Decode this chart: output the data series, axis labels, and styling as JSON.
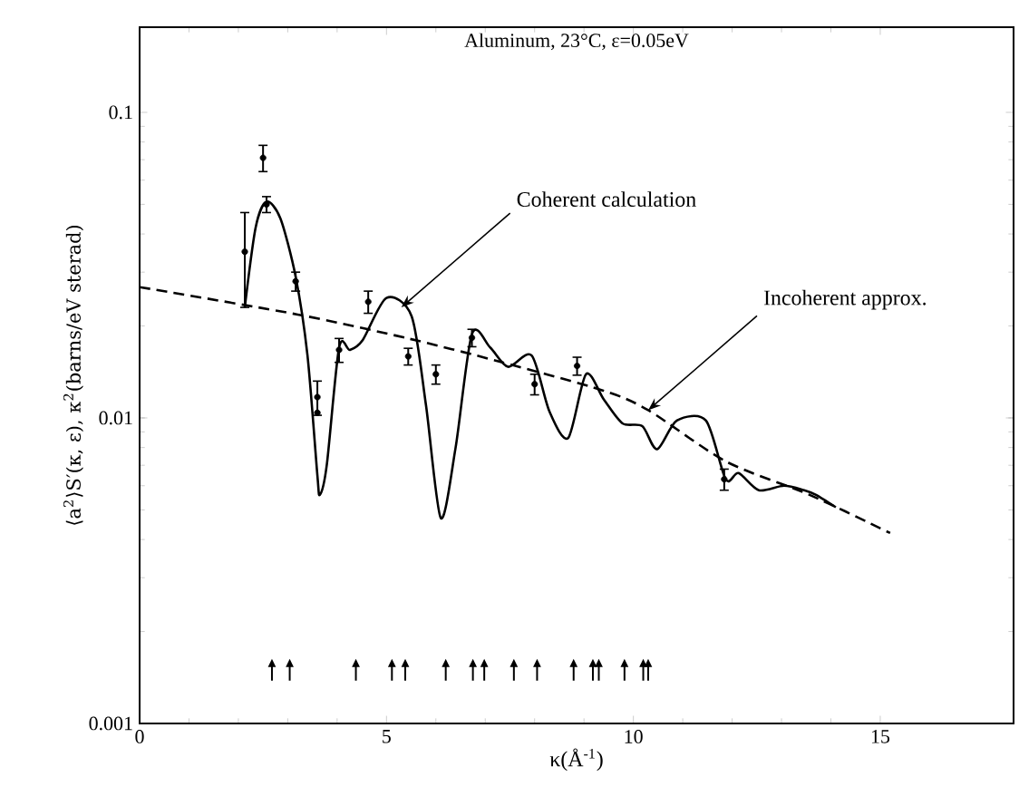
{
  "chart_data": {
    "type": "line",
    "title": "Aluminum, 23°C,  ε=0.05eV",
    "xlabel": "κ(Å$^{-1}$)",
    "ylabel": "⟨a$^{2}$⟩S′(κ, ε), κ$^{2}$(barns/eV sterad)",
    "log": "y",
    "xlim": [
      0,
      17.7
    ],
    "ylim": [
      0.001,
      0.19
    ],
    "xticks": [
      0,
      5,
      10,
      15
    ],
    "yticks": [
      0.001,
      0.01,
      0.1
    ],
    "grid": false,
    "annotations": [
      {
        "text": "Coherent calculation",
        "x": 5.3,
        "y": 0.023
      },
      {
        "text": "Incoherent approx.",
        "x": 10.3,
        "y": 0.0106
      }
    ],
    "series": [
      {
        "color": "#000000",
        "line_style": "solid",
        "marker": "none",
        "x": [
          2.13,
          2.35,
          2.57,
          2.85,
          3.16,
          3.4,
          3.6,
          3.65,
          3.79,
          4.04,
          4.26,
          4.52,
          5.0,
          5.51,
          5.8,
          6.1,
          6.4,
          6.73,
          7.1,
          7.46,
          7.94,
          8.3,
          8.68,
          9.04,
          9.4,
          9.78,
          10.18,
          10.48,
          10.88,
          11.47,
          11.87,
          12.13,
          12.54,
          13.05,
          13.46,
          13.7,
          14.1
        ],
        "values": [
          0.023,
          0.042,
          0.051,
          0.045,
          0.029,
          0.016,
          0.0065,
          0.0056,
          0.007,
          0.017,
          0.0167,
          0.018,
          0.0247,
          0.0215,
          0.011,
          0.0047,
          0.008,
          0.0188,
          0.017,
          0.0147,
          0.016,
          0.0105,
          0.0086,
          0.0139,
          0.0115,
          0.0096,
          0.0094,
          0.0079,
          0.0098,
          0.0098,
          0.0063,
          0.0066,
          0.0058,
          0.006,
          0.0058,
          0.0056,
          0.0051
        ]
      },
      {
        "color": "#000000",
        "line_style": "dashed",
        "marker": "none",
        "x": [
          0,
          3.2,
          5.44,
          7.28,
          9.38,
          10.3,
          11.88,
          13.57,
          15.2
        ],
        "values": [
          0.0268,
          0.0218,
          0.0182,
          0.0153,
          0.0123,
          0.0106,
          0.0072,
          0.0056,
          0.0042
        ]
      },
      {
        "type": "scatter",
        "color": "#000000",
        "marker": "circle",
        "x": [
          2.13,
          2.5,
          2.57,
          3.16,
          3.6,
          3.6,
          4.04,
          4.63,
          5.44,
          6.0,
          6.73,
          8.0,
          8.86,
          11.84
        ],
        "values": [
          0.035,
          0.071,
          0.05,
          0.028,
          0.0117,
          0.0104,
          0.0167,
          0.024,
          0.0159,
          0.0139,
          0.0183,
          0.0129,
          0.0148,
          0.0063
        ],
        "errors": [
          0.012,
          0.007,
          0.003,
          0.002,
          0.0015,
          null,
          0.0015,
          0.002,
          0.001,
          0.001,
          0.0012,
          0.001,
          0.001,
          0.0005
        ]
      },
      {
        "type": "scatter",
        "color": "#000000",
        "marker": "triangle",
        "x": [
          2.68,
          3.04,
          4.38,
          5.11,
          5.38,
          6.2,
          6.75,
          6.98,
          7.58,
          8.05,
          8.79,
          9.18,
          9.3,
          9.82,
          10.2,
          10.3
        ],
        "values": [
          0.0015,
          0.0015,
          0.0015,
          0.0015,
          0.0015,
          0.0015,
          0.0015,
          0.0015,
          0.0015,
          0.0015,
          0.0015,
          0.0015,
          0.0015,
          0.0015,
          0.0015,
          0.0015
        ]
      }
    ]
  }
}
